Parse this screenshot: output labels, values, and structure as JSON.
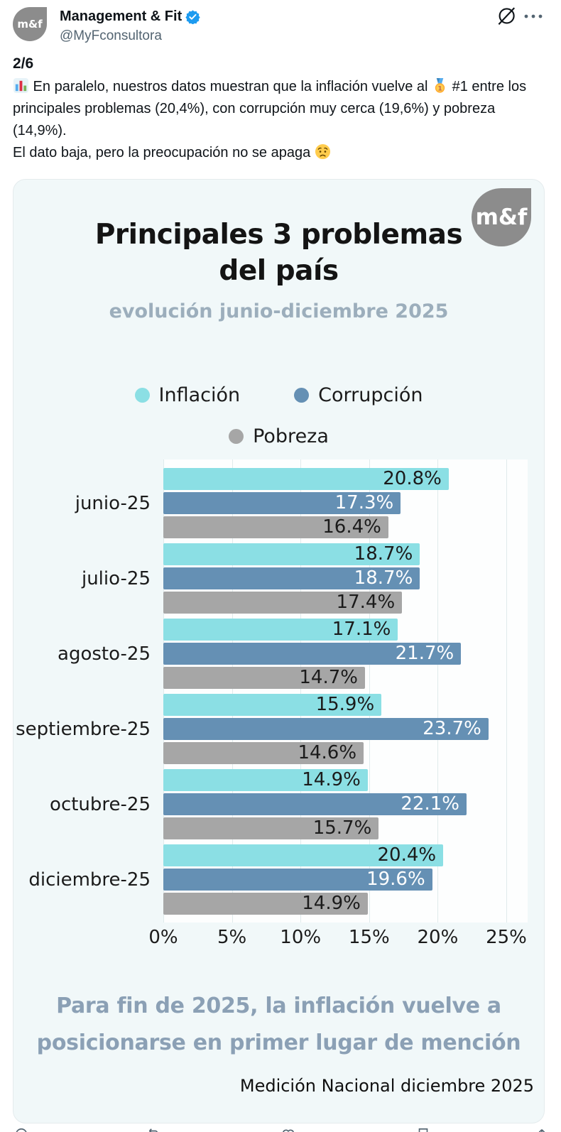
{
  "header": {
    "display_name": "Management & Fit",
    "handle": "@MyFconsultora",
    "avatar_text": "m&f",
    "verified": true,
    "accent_color": "#1d9bf0"
  },
  "tweet": {
    "page_indicator": "2/6",
    "body_parts": [
      {
        "type": "emoji",
        "name": "bar-chart-emoji",
        "char": "📊"
      },
      {
        "type": "text",
        "value": " En paralelo, nuestros datos muestran que la inflación vuelve al "
      },
      {
        "type": "emoji",
        "name": "gold-medal-emoji",
        "char": "🥇"
      },
      {
        "type": "text",
        "value": " #1 entre los principales problemas (20,4%), con corrupción muy cerca (19,6%) y pobreza (14,9%).\nEl dato baja, pero la preocupación no se apaga "
      },
      {
        "type": "emoji",
        "name": "worried-face-emoji",
        "char": "😟"
      }
    ]
  },
  "card": {
    "logo_text": "m&f",
    "title": "Principales 3 problemas\ndel país",
    "subtitle": "evolución junio-diciembre 2025",
    "takeaway": "Para fin de 2025, la inflación  vuelve a\nposicionarse en primer lugar de mención",
    "source": "Medición Nacional diciembre 2025",
    "background_color": "#f1f8f9"
  },
  "chart_data": {
    "type": "bar",
    "orientation": "horizontal",
    "title": "Principales 3 problemas del país",
    "subtitle": "evolución junio-diciembre 2025",
    "categories": [
      "junio-25",
      "julio-25",
      "agosto-25",
      "septiembre-25",
      "octubre-25",
      "diciembre-25"
    ],
    "series": [
      {
        "name": "Inflación",
        "color": "#8bdfe4",
        "label_color": "#1b1b1b",
        "values": [
          20.8,
          18.7,
          17.1,
          15.9,
          14.9,
          20.4
        ]
      },
      {
        "name": "Corrupción",
        "color": "#6590b4",
        "label_color": "#ffffff",
        "values": [
          17.3,
          18.7,
          21.7,
          23.7,
          22.1,
          19.6
        ]
      },
      {
        "name": "Pobreza",
        "color": "#a6a6a6",
        "label_color": "#1b1b1b",
        "values": [
          16.4,
          17.4,
          14.7,
          14.6,
          15.7,
          14.9
        ]
      }
    ],
    "x_tick_values": [
      0,
      5,
      10,
      15,
      20,
      25
    ],
    "x_ticks": [
      "0%",
      "5%",
      "10%",
      "15%",
      "20%",
      "25%"
    ],
    "xlim": [
      0,
      25
    ],
    "value_suffix": "%",
    "grid": "vertical",
    "legend_position": "top"
  },
  "action_bar": {
    "icons": [
      "reply-icon",
      "repost-icon",
      "like-icon",
      "bookmark-icon",
      "share-icon"
    ]
  }
}
